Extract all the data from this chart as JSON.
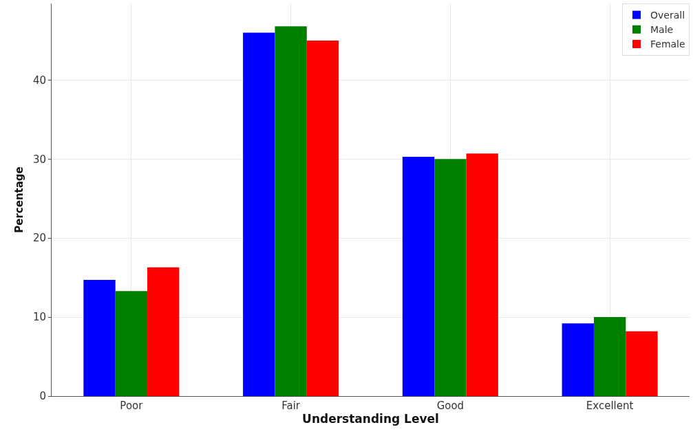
{
  "chart_data": {
    "type": "bar",
    "xlabel": "Understanding Level",
    "ylabel": "Percentage",
    "categories": [
      "Poor",
      "Fair",
      "Good",
      "Excellent"
    ],
    "series": [
      {
        "name": "Overall",
        "color": "#0000ff",
        "values": [
          14.7,
          46.0,
          30.3,
          9.2
        ]
      },
      {
        "name": "Male",
        "color": "#008000",
        "values": [
          13.3,
          46.8,
          30.0,
          10.0
        ]
      },
      {
        "name": "Female",
        "color": "#ff0000",
        "values": [
          16.3,
          45.0,
          30.7,
          8.2
        ]
      }
    ],
    "ylim": [
      0,
      49.7
    ],
    "yticks": [
      0,
      10,
      20,
      30,
      40
    ],
    "grid": true,
    "legend": "top right"
  }
}
